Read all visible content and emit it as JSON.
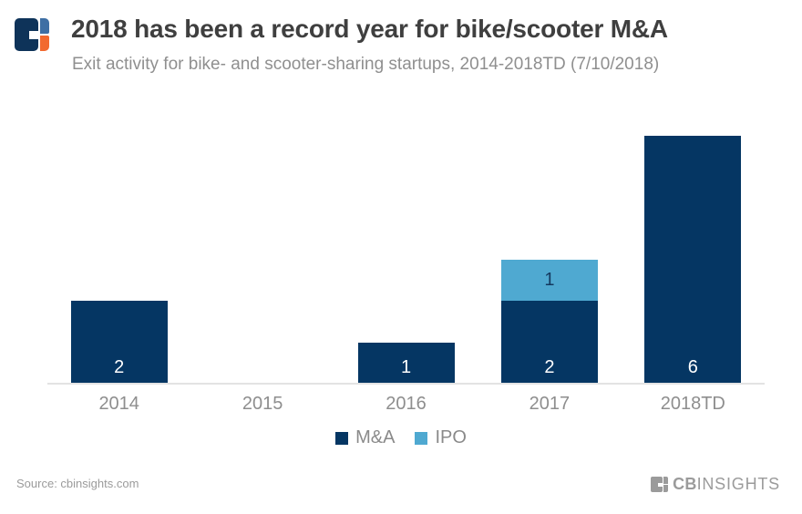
{
  "header": {
    "title": "2018 has been a record year for bike/scooter M&A",
    "subtitle": "Exit activity for bike- and scooter-sharing startups, 2014-2018TD (7/10/2018)"
  },
  "brand_colors": {
    "navy": "#0E3359",
    "blue": "#3E6FA4",
    "orange": "#F2692F",
    "footer_gray": "#9B9B9B"
  },
  "chart_data": {
    "type": "bar",
    "stacked": true,
    "title": "2018 has been a record year for bike/scooter M&A",
    "subtitle": "Exit activity for bike- and scooter-sharing startups, 2014-2018TD (7/10/2018)",
    "categories": [
      "2014",
      "2015",
      "2016",
      "2017",
      "2018TD"
    ],
    "series": [
      {
        "name": "M&A",
        "color": "#053663",
        "label_color": "#FFFFFF",
        "values": [
          2,
          0,
          1,
          2,
          6
        ]
      },
      {
        "name": "IPO",
        "color": "#4FA9D1",
        "label_color": "#14395F",
        "values": [
          0,
          0,
          0,
          1,
          0
        ]
      }
    ],
    "totals": [
      2,
      0,
      1,
      3,
      6
    ],
    "xlabel": "",
    "ylabel": "",
    "ylim": [
      0,
      6.65
    ],
    "grid": false,
    "y_axis_visible": false,
    "legend_position": "bottom"
  },
  "legend": {
    "items": [
      {
        "label": "M&A",
        "color": "#053663"
      },
      {
        "label": "IPO",
        "color": "#4FA9D1"
      }
    ]
  },
  "footer": {
    "source": "Source: cbinsights.com",
    "brand_cb": "CB",
    "brand_insights": "INSIGHTS"
  }
}
